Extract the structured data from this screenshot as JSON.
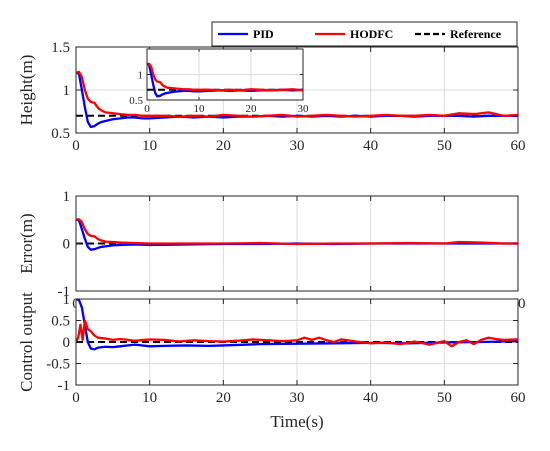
{
  "legend": {
    "items": [
      {
        "label": "PID",
        "color": "#0000ff",
        "dash": false
      },
      {
        "label": "HODFC",
        "color": "#ff0000",
        "dash": false
      },
      {
        "label": "Reference",
        "color": "#000000",
        "dash": true
      }
    ]
  },
  "xlabel": "Time(s)",
  "chart_data": [
    {
      "type": "line",
      "id": "height",
      "ylabel": "Height(m)",
      "xlim": [
        0,
        60
      ],
      "ylim": [
        0.5,
        1.5
      ],
      "xticks": [
        0,
        10,
        20,
        30,
        40,
        50,
        60
      ],
      "yticks": [
        0.5,
        1,
        1.5
      ],
      "ytick_labels": [
        "0.5",
        "1",
        "1.5"
      ],
      "grid": true,
      "series": [
        {
          "name": "PID",
          "color": "#0000ff",
          "x": [
            0,
            0.4,
            0.8,
            1.2,
            1.6,
            2,
            2.5,
            3,
            3.5,
            4,
            5,
            6,
            7,
            8,
            9,
            10,
            12,
            14,
            16,
            18,
            20,
            22,
            24,
            26,
            28,
            30,
            32,
            34,
            36,
            38,
            40,
            42,
            44,
            46,
            48,
            50,
            52,
            54,
            56,
            58,
            60
          ],
          "y": [
            1.2,
            1.19,
            1.0,
            0.8,
            0.63,
            0.57,
            0.58,
            0.61,
            0.63,
            0.64,
            0.66,
            0.67,
            0.68,
            0.68,
            0.67,
            0.67,
            0.68,
            0.69,
            0.68,
            0.69,
            0.68,
            0.69,
            0.69,
            0.7,
            0.69,
            0.7,
            0.69,
            0.7,
            0.69,
            0.7,
            0.69,
            0.7,
            0.7,
            0.69,
            0.7,
            0.7,
            0.7,
            0.69,
            0.7,
            0.7,
            0.7
          ]
        },
        {
          "name": "HODFC",
          "color": "#ff0000",
          "x": [
            0,
            0.4,
            0.8,
            1.2,
            1.6,
            2,
            2.5,
            3,
            3.5,
            4,
            5,
            6,
            7,
            8,
            9,
            10,
            12,
            14,
            16,
            18,
            20,
            22,
            24,
            26,
            28,
            30,
            32,
            34,
            36,
            38,
            40,
            42,
            44,
            46,
            48,
            50,
            52,
            54,
            56,
            58,
            60
          ],
          "y": [
            1.2,
            1.21,
            1.15,
            1.0,
            0.9,
            0.86,
            0.85,
            0.79,
            0.76,
            0.74,
            0.73,
            0.72,
            0.71,
            0.71,
            0.7,
            0.7,
            0.7,
            0.69,
            0.7,
            0.69,
            0.71,
            0.7,
            0.69,
            0.7,
            0.71,
            0.69,
            0.7,
            0.71,
            0.7,
            0.69,
            0.7,
            0.71,
            0.7,
            0.7,
            0.71,
            0.7,
            0.73,
            0.72,
            0.74,
            0.7,
            0.71
          ]
        },
        {
          "name": "Reference",
          "color": "#000000",
          "dash": true,
          "x": [
            0,
            60
          ],
          "y": [
            0.7,
            0.7
          ]
        }
      ],
      "inset": {
        "xlim": [
          0,
          30
        ],
        "ylim": [
          0.5,
          1.5
        ],
        "xticks": [
          0,
          10,
          20,
          30
        ],
        "yticks": [
          0.5,
          1
        ],
        "ytick_labels": [
          "0.5",
          "1"
        ]
      }
    },
    {
      "type": "line",
      "id": "error",
      "ylabel": "Error(m)",
      "xlim": [
        0,
        60
      ],
      "ylim": [
        -1,
        1
      ],
      "xticks": [
        0,
        10,
        20,
        30,
        40,
        50,
        60
      ],
      "yticks": [
        -1,
        0,
        1
      ],
      "ytick_labels": [
        "-1",
        "0",
        "1"
      ],
      "grid": true,
      "series": [
        {
          "name": "PID",
          "color": "#0000ff",
          "x": [
            0,
            0.4,
            0.8,
            1.2,
            1.6,
            2,
            2.5,
            3,
            3.5,
            4,
            5,
            6,
            8,
            10,
            15,
            20,
            25,
            30,
            35,
            40,
            45,
            50,
            55,
            60
          ],
          "y": [
            0.5,
            0.49,
            0.3,
            0.1,
            -0.07,
            -0.13,
            -0.12,
            -0.09,
            -0.07,
            -0.06,
            -0.04,
            -0.03,
            -0.02,
            -0.03,
            -0.02,
            -0.01,
            -0.01,
            0,
            -0.01,
            0,
            0,
            0,
            0,
            0
          ]
        },
        {
          "name": "HODFC",
          "color": "#ff0000",
          "x": [
            0,
            0.4,
            0.8,
            1.2,
            1.6,
            2,
            2.5,
            3,
            3.5,
            4,
            5,
            6,
            8,
            10,
            15,
            20,
            25,
            30,
            35,
            40,
            45,
            50,
            52,
            55,
            58,
            60
          ],
          "y": [
            0.5,
            0.51,
            0.45,
            0.3,
            0.2,
            0.16,
            0.15,
            0.09,
            0.06,
            0.04,
            0.03,
            0.02,
            0.01,
            0,
            0,
            0,
            0.01,
            -0.01,
            0,
            0,
            0.01,
            0,
            0.03,
            0.02,
            0,
            0
          ]
        },
        {
          "name": "Reference",
          "color": "#000000",
          "dash": true,
          "x": [
            0,
            60
          ],
          "y": [
            0,
            0
          ]
        }
      ]
    },
    {
      "type": "line",
      "id": "control",
      "ylabel": "Control output",
      "xlim": [
        0,
        60
      ],
      "ylim": [
        -1,
        1
      ],
      "xticks": [
        0,
        10,
        20,
        30,
        40,
        50,
        60
      ],
      "yticks": [
        -1,
        -0.5,
        0,
        0.5,
        1
      ],
      "ytick_labels": [
        "-1",
        "-0.5",
        "0",
        "0.5",
        "1"
      ],
      "grid": true,
      "series": [
        {
          "name": "PID",
          "color": "#0000ff",
          "x": [
            0,
            0.4,
            0.8,
            1.2,
            1.6,
            2,
            2.5,
            3,
            4,
            5,
            6,
            8,
            10,
            12,
            15,
            18,
            20,
            25,
            30,
            35,
            40,
            45,
            50,
            55,
            60
          ],
          "y": [
            1.0,
            0.98,
            0.8,
            0.4,
            0.0,
            -0.15,
            -0.17,
            -0.13,
            -0.11,
            -0.12,
            -0.1,
            -0.06,
            -0.1,
            -0.09,
            -0.08,
            -0.09,
            -0.08,
            -0.05,
            -0.04,
            -0.03,
            -0.02,
            -0.03,
            -0.01,
            0,
            0.02
          ]
        },
        {
          "name": "HODFC",
          "color": "#ff0000",
          "x": [
            0,
            0.3,
            0.6,
            0.9,
            1.2,
            1.6,
            2,
            2.5,
            3,
            4,
            5,
            6,
            8,
            10,
            12,
            14,
            16,
            18,
            20,
            22,
            24,
            26,
            28,
            30,
            31,
            32,
            33,
            34,
            35,
            36,
            38,
            40,
            42,
            44,
            46,
            48,
            50,
            51,
            52,
            53,
            54,
            55,
            56,
            57,
            58,
            60
          ],
          "y": [
            0.0,
            0.1,
            0.4,
            0.05,
            0.5,
            0.3,
            0.25,
            0.15,
            0.1,
            0.08,
            0.05,
            0.07,
            0.03,
            0.06,
            0.05,
            0.01,
            0.04,
            0.02,
            0.01,
            0.03,
            0.06,
            0.04,
            0.02,
            0.04,
            0.1,
            0.05,
            0.1,
            0.04,
            0.0,
            0.06,
            0.01,
            -0.03,
            -0.01,
            -0.05,
            0.01,
            -0.06,
            0.02,
            -0.1,
            0.0,
            0.04,
            -0.05,
            0.05,
            0.1,
            0.07,
            0.05,
            0.06
          ]
        },
        {
          "name": "Reference",
          "color": "#000000",
          "dash": true,
          "x": [
            0,
            60
          ],
          "y": [
            0,
            0
          ]
        }
      ]
    }
  ]
}
